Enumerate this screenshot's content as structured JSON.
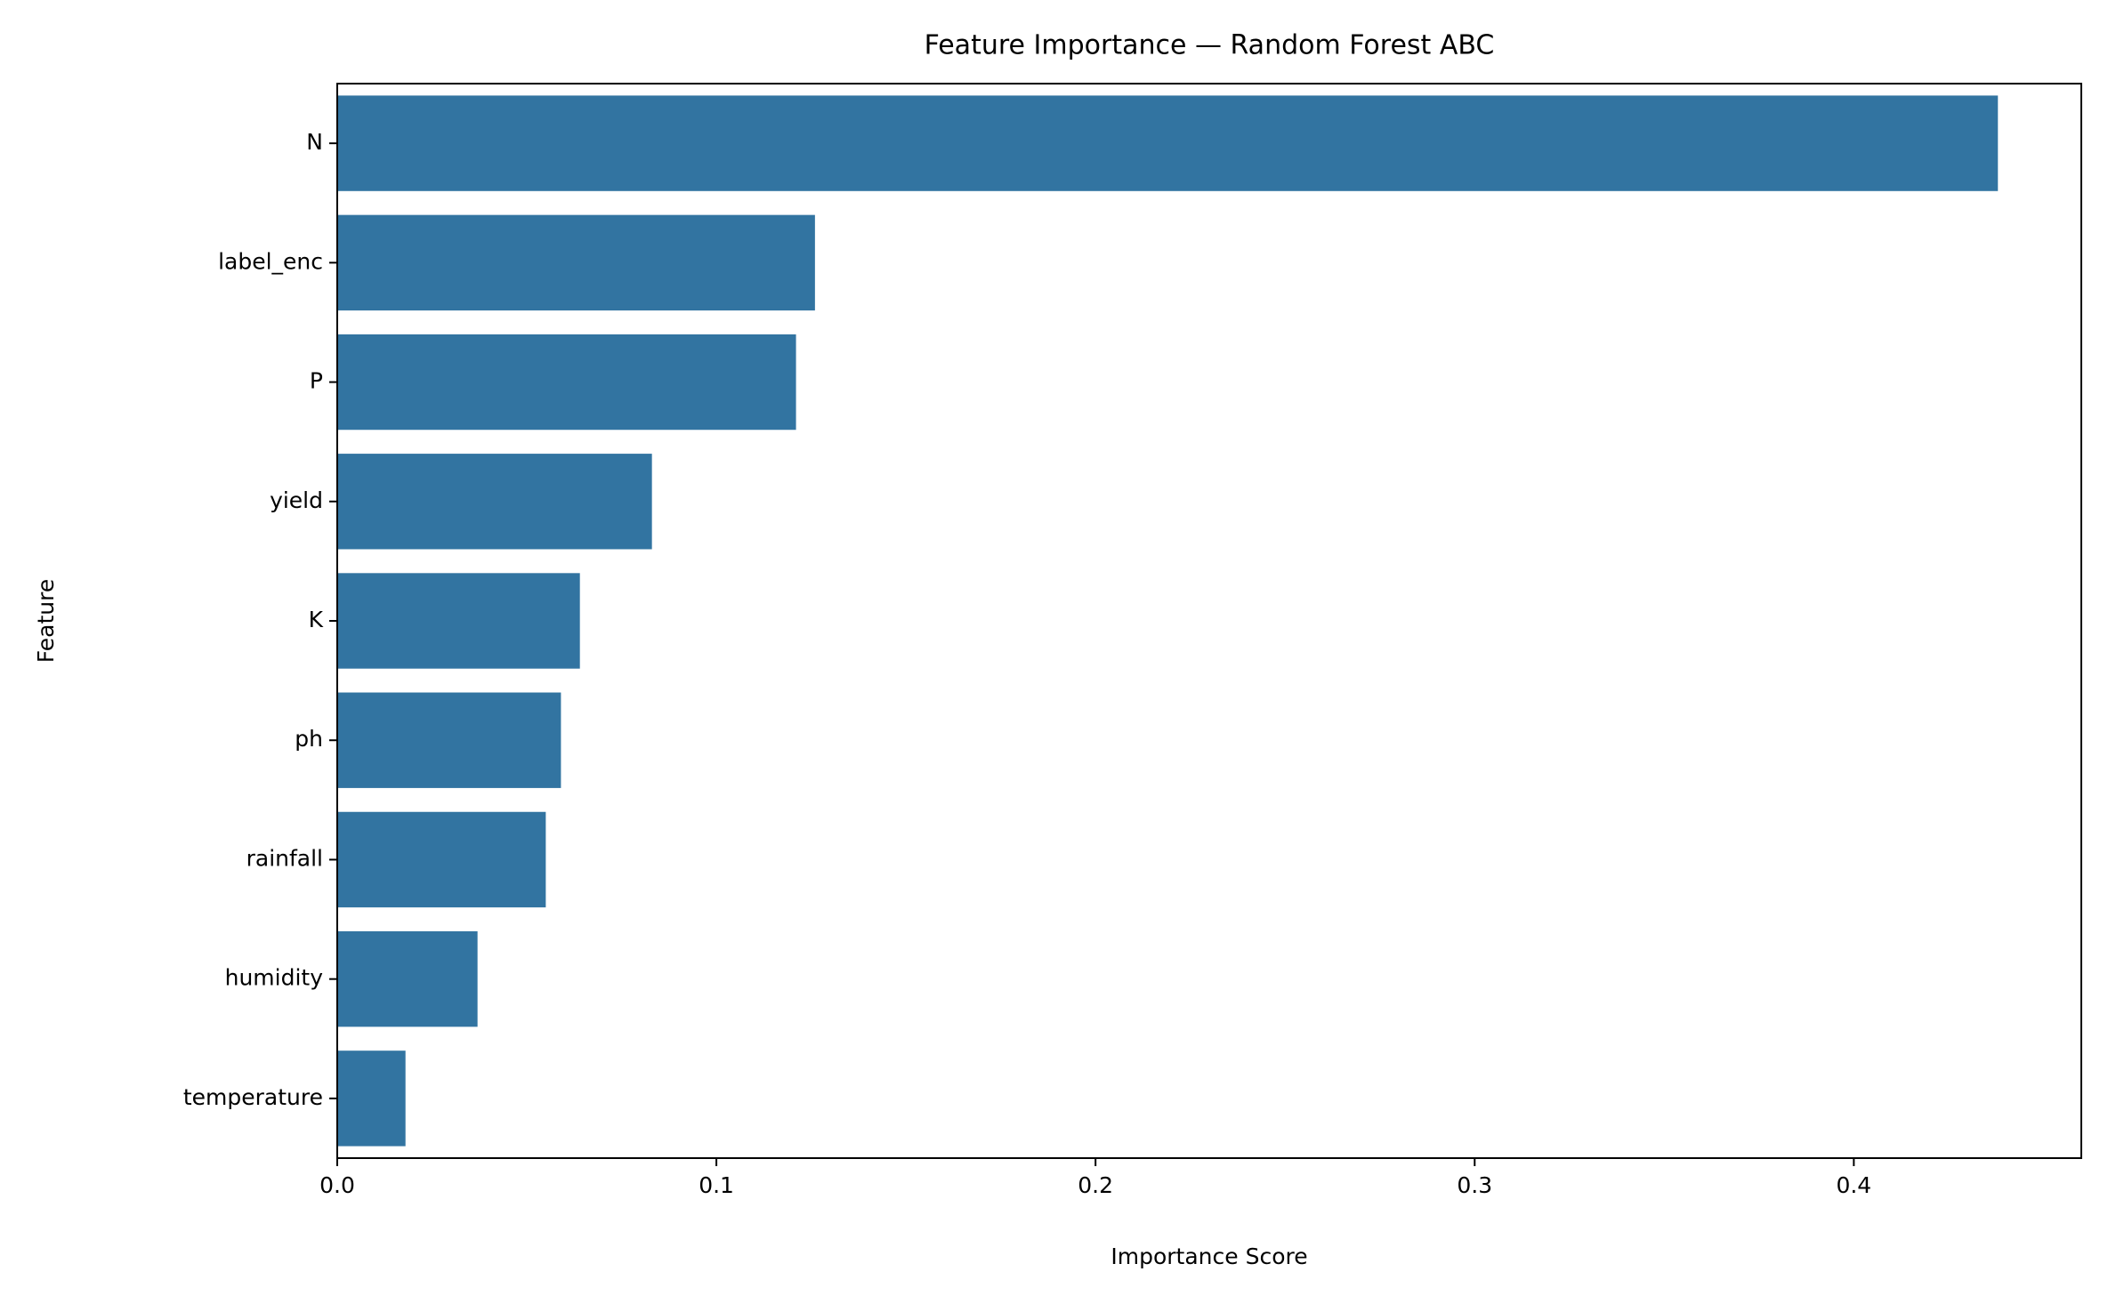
{
  "chart_data": {
    "type": "bar",
    "orientation": "horizontal",
    "title": "Feature Importance — Random Forest ABC",
    "x_label": "Importance Score",
    "y_label": "Feature",
    "categories": [
      "N",
      "label_enc",
      "P",
      "yield",
      "K",
      "ph",
      "rainfall",
      "humidity",
      "temperature"
    ],
    "values": [
      0.438,
      0.126,
      0.121,
      0.083,
      0.064,
      0.059,
      0.055,
      0.037,
      0.018
    ],
    "color": "#3274a1",
    "xlim": [
      0,
      0.46
    ],
    "xticks": [
      {
        "value": 0,
        "label": "0.0"
      },
      0.1,
      0.2,
      0.3,
      0.4
    ],
    "grid": false
  }
}
